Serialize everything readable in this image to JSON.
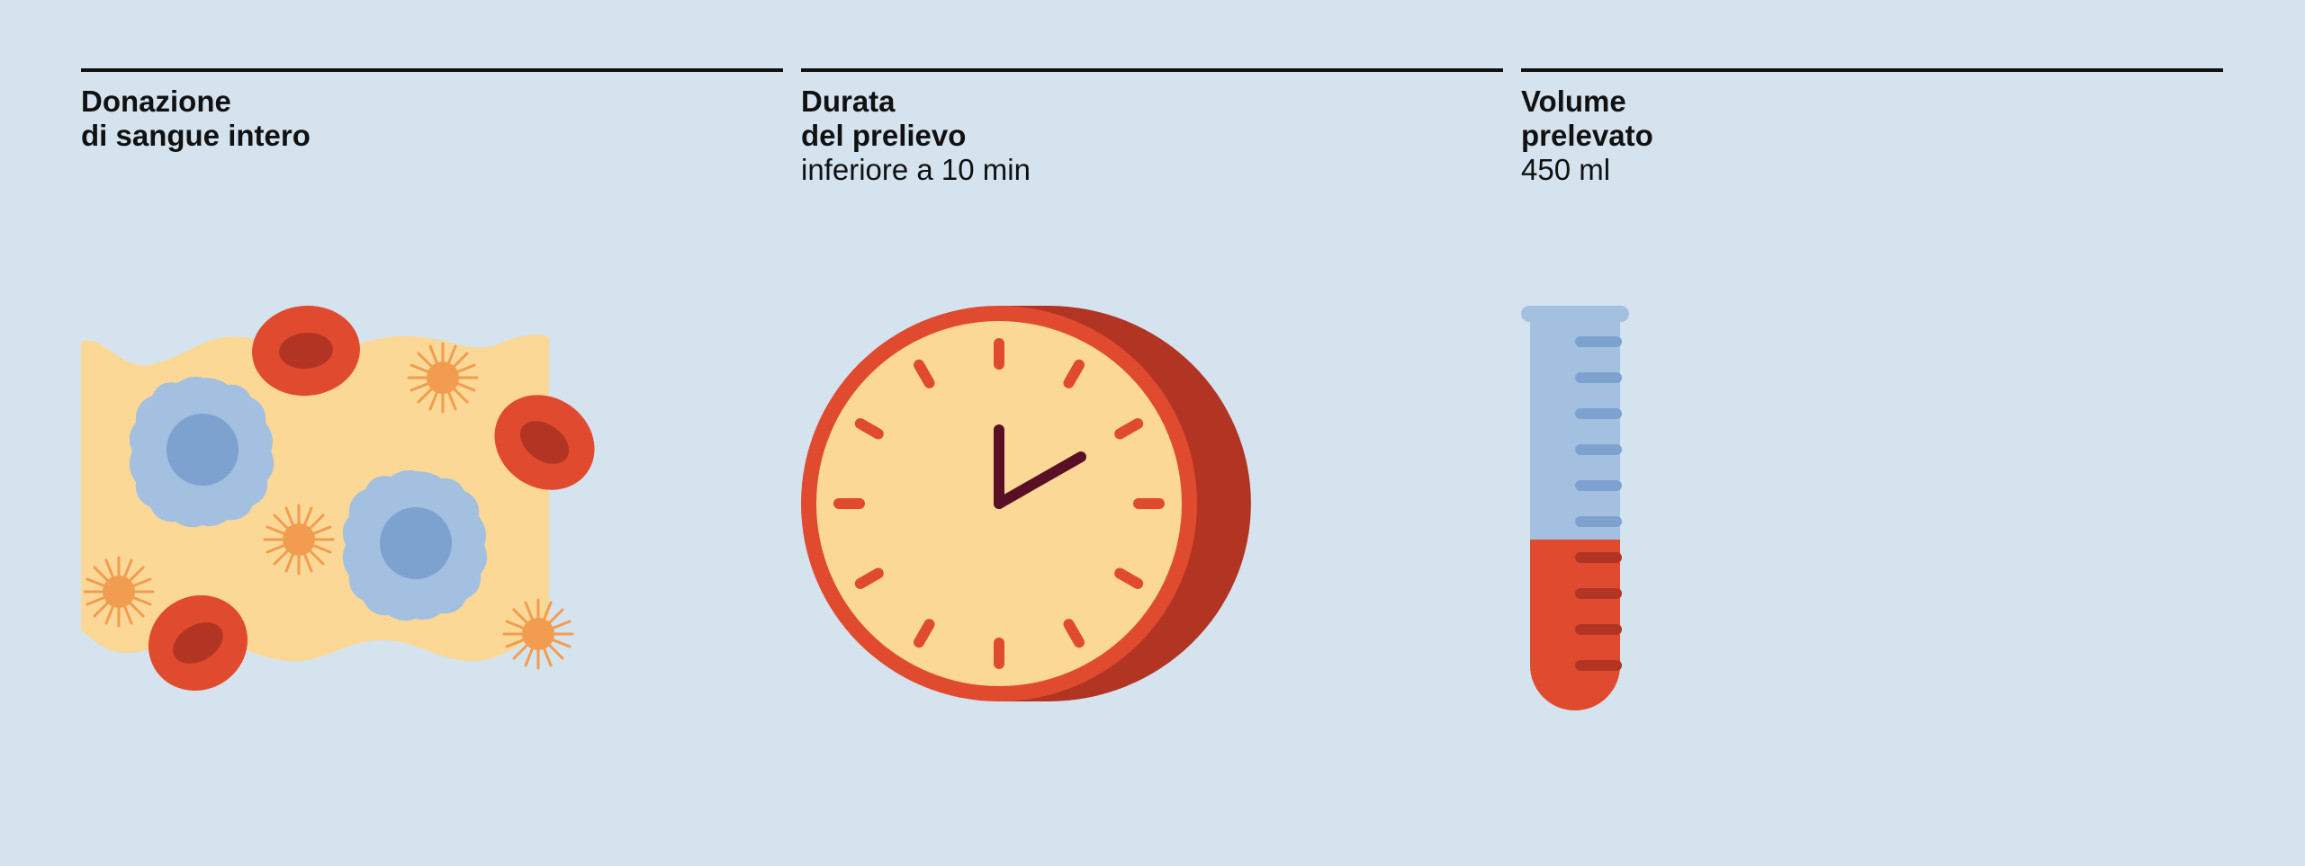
{
  "panels": [
    {
      "title_lines": [
        "Donazione",
        "di sangue intero"
      ],
      "icon": "blood-cells-icon"
    },
    {
      "title_lines": [
        "Durata",
        "del prelievo"
      ],
      "subtitle": "inferiore a 10 min",
      "icon": "clock-icon"
    },
    {
      "title_lines": [
        "Volume",
        "prelevato"
      ],
      "subtitle": "450 ml",
      "icon": "test-tube-icon"
    }
  ],
  "colors": {
    "background": "#d5e3ee",
    "rule": "#111111",
    "plasma": "#fcd896",
    "red_cell": "#e04a2e",
    "red_cell_center": "#b23523",
    "white_cell": "#a3c0e0",
    "white_cell_nucleus": "#7ea2cf",
    "platelet": "#f29c4f",
    "clock_face": "#fcd896",
    "clock_rim": "#e04a2e",
    "clock_side": "#b23523",
    "clock_hands": "#5a1024",
    "tube_glass": "#a3c0e0",
    "tube_marks": "#7ea2cf",
    "tube_blood": "#e04a2e",
    "tube_blood_marks": "#b23523"
  }
}
